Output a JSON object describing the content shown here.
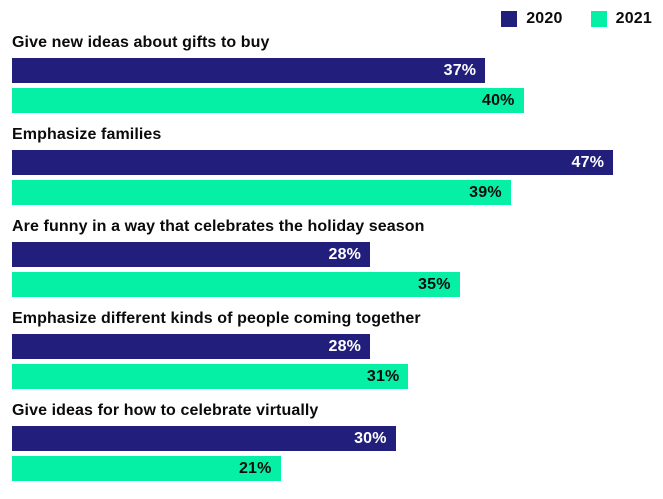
{
  "legend": {
    "items": [
      {
        "label": "2020",
        "color": "#221E7C"
      },
      {
        "label": "2021",
        "color": "#06F0A5"
      }
    ]
  },
  "chart_data": {
    "type": "bar",
    "orientation": "horizontal",
    "unit": "%",
    "grid": false,
    "legend_position": "top-right",
    "xlim": [
      0,
      47
    ],
    "value_labels": "inside-end",
    "categories": [
      "Give new ideas about gifts to buy",
      "Emphasize families",
      "Are funny in a way that celebrates the holiday season",
      "Emphasize different kinds of people coming together",
      "Give ideas for how to celebrate virtually"
    ],
    "series": [
      {
        "name": "2020",
        "color": "#221E7C",
        "label_color": "#FFFFFF",
        "values": [
          37,
          47,
          28,
          28,
          30
        ]
      },
      {
        "name": "2021",
        "color": "#06F0A5",
        "label_color": "#0B0B0B",
        "values": [
          40,
          39,
          35,
          31,
          21
        ]
      }
    ]
  }
}
